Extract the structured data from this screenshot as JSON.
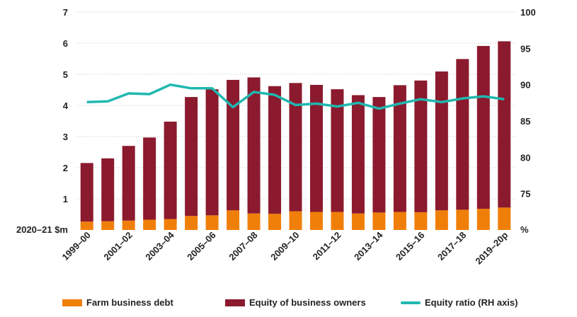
{
  "chart_data": {
    "type": "bar",
    "stacked": true,
    "y_unit_label": "2020–21 $m",
    "y2_unit_label": "%",
    "ylim": [
      0,
      7
    ],
    "yticks": [
      1,
      2,
      3,
      4,
      5,
      6,
      7
    ],
    "y2lim": [
      70,
      100
    ],
    "y2ticks": [
      75,
      80,
      85,
      90,
      95,
      100
    ],
    "grid": "horizontal dotted",
    "legend_placement": "bottom",
    "categories": [
      "1999–00",
      "2000–01",
      "2001–02",
      "2002–03",
      "2003–04",
      "2004–05",
      "2005–06",
      "2006–07",
      "2007–08",
      "2008–09",
      "2009–10",
      "2010–11",
      "2011–12",
      "2012–13",
      "2013–14",
      "2014–15",
      "2015–16",
      "2016–17",
      "2017–18",
      "2018–19",
      "2019–20p"
    ],
    "category_labels_shown": [
      "1999–00",
      "2001–02",
      "2003–04",
      "2005–06",
      "2007–08",
      "2009–10",
      "2011–12",
      "2013–14",
      "2015–16",
      "2017–18",
      "2019–20p"
    ],
    "series": [
      {
        "name": "Farm business debt",
        "type": "bar",
        "color": "#f07f09",
        "values": [
          0.27,
          0.28,
          0.3,
          0.33,
          0.35,
          0.45,
          0.47,
          0.63,
          0.53,
          0.52,
          0.6,
          0.58,
          0.58,
          0.53,
          0.56,
          0.58,
          0.57,
          0.63,
          0.65,
          0.68,
          0.72
        ]
      },
      {
        "name": "Equity of business owners",
        "type": "bar",
        "color": "#8b1a2e",
        "values": [
          1.88,
          2.02,
          2.4,
          2.64,
          3.13,
          3.82,
          4.05,
          4.19,
          4.37,
          4.1,
          4.12,
          4.08,
          3.94,
          3.8,
          3.71,
          4.07,
          4.23,
          4.46,
          4.84,
          5.23,
          5.34
        ]
      },
      {
        "name": "Equity ratio (RH axis)",
        "type": "line",
        "axis": "right",
        "color": "#20b8b0",
        "values": [
          87.6,
          87.7,
          88.8,
          88.7,
          90.0,
          89.5,
          89.5,
          86.9,
          89.0,
          88.6,
          87.2,
          87.4,
          87.0,
          87.5,
          86.7,
          87.4,
          88.0,
          87.6,
          88.1,
          88.4,
          88.0
        ]
      }
    ]
  }
}
